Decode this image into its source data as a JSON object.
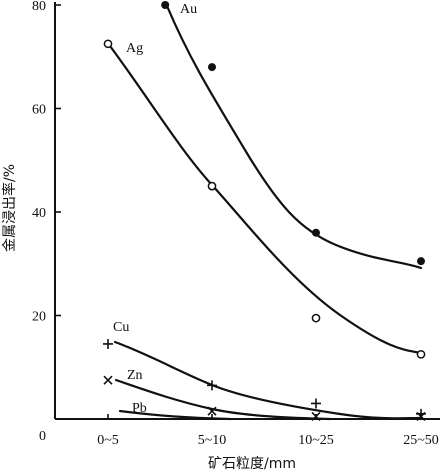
{
  "chart_data": {
    "type": "line",
    "xlabel": "矿石粒度/mm",
    "ylabel": "金属浸出率/%",
    "categories": [
      "0~5",
      "5~10",
      "10~25",
      "25~50"
    ],
    "y_axis_ticks": [
      "0",
      "20",
      "40",
      "60",
      "80"
    ],
    "ylim": [
      0,
      80
    ],
    "grid": false,
    "series": [
      {
        "name": "Au",
        "marker": "filled-circle",
        "x": [
          0.55,
          1.0,
          2.0,
          3.0
        ],
        "values": [
          80.0,
          68.0,
          36.0,
          30.5
        ]
      },
      {
        "name": "Ag",
        "marker": "open-circle",
        "x": [
          0.0,
          1.0,
          2.0,
          3.0
        ],
        "values": [
          72.5,
          45.0,
          19.5,
          12.5
        ]
      },
      {
        "name": "Cu",
        "marker": "plus",
        "x": [
          0.0,
          1.0,
          2.0,
          3.0
        ],
        "values": [
          14.5,
          6.5,
          3.0,
          1.0
        ]
      },
      {
        "name": "Zn",
        "marker": "cross",
        "x": [
          0.0,
          1.0,
          2.0,
          3.0
        ],
        "values": [
          7.5,
          1.5,
          0.5,
          0.5
        ]
      },
      {
        "name": "Pb",
        "marker": "none",
        "x": [],
        "values": []
      }
    ]
  }
}
